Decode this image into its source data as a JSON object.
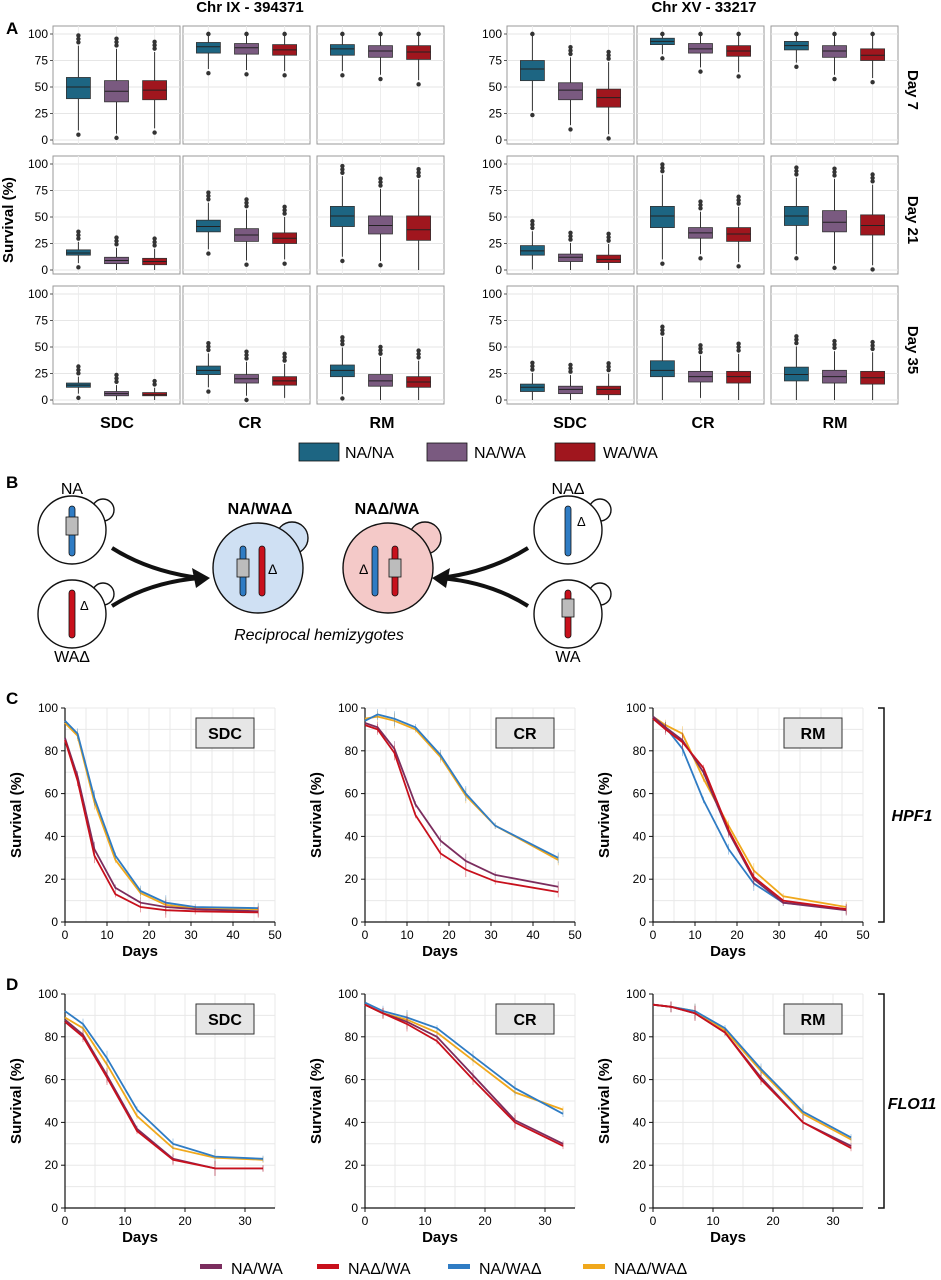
{
  "panelA": {
    "label": "A",
    "ylabel": "Survival (%)",
    "yticks": [
      0,
      25,
      50,
      75,
      100
    ],
    "groups": [
      {
        "title": "Chr IX - 394371",
        "media": [
          "SDC",
          "CR",
          "RM"
        ]
      },
      {
        "title": "Chr XV - 33217",
        "media": [
          "SDC",
          "CR",
          "RM"
        ]
      }
    ],
    "days": [
      "Day 7",
      "Day 21",
      "Day 35"
    ],
    "genotypes": [
      "NA/NA",
      "NA/WA",
      "WA/WA"
    ],
    "colors": {
      "NA/NA": "#1d6582",
      "NA/WA": "#7a5a80",
      "WA/WA": "#a0161e"
    }
  },
  "panelB": {
    "label": "B",
    "left_top": "NA",
    "left_bottom": "WAΔ",
    "right_top": "NAΔ",
    "right_bottom": "WA",
    "hybrid_left": "NA/WAΔ",
    "hybrid_right": "NAΔ/WA",
    "delta": "Δ",
    "caption": "Reciprocal hemizygotes"
  },
  "panelC": {
    "label": "C",
    "gene": "HPF1",
    "ylabel": "Survival (%)",
    "xlabel": "Days",
    "xticks": [
      0,
      10,
      20,
      30,
      40,
      50
    ],
    "yticks": [
      0,
      20,
      40,
      60,
      80,
      100
    ]
  },
  "panelD": {
    "label": "D",
    "gene": "FLO11",
    "ylabel": "Survival (%)",
    "xlabel": "Days",
    "xticks": [
      0,
      10,
      20,
      30
    ],
    "yticks": [
      0,
      20,
      40,
      60,
      80,
      100
    ]
  },
  "legend2": {
    "entries": [
      "NA/WA",
      "NAΔ/WA",
      "NA/WAΔ",
      "NAΔ/WAΔ"
    ],
    "colors": [
      "#7b2d5e",
      "#c8101c",
      "#2f7cc4",
      "#f0a81c"
    ]
  },
  "chart_data": [
    {
      "type": "box",
      "panel": "A",
      "title": "Chr IX - 394371",
      "ylabel": "Survival (%)",
      "ylim": [
        0,
        100
      ],
      "facets": [
        {
          "day": "Day 7",
          "medium": "SDC",
          "medians": [
            50,
            46,
            47
          ],
          "q1": [
            39,
            36,
            38
          ],
          "q3": [
            59,
            56,
            56
          ]
        },
        {
          "day": "Day 7",
          "medium": "CR",
          "medians": [
            88,
            87,
            85
          ],
          "q1": [
            82,
            81,
            80
          ],
          "q3": [
            92,
            91,
            90
          ]
        },
        {
          "day": "Day 7",
          "medium": "RM",
          "medians": [
            86,
            84,
            83
          ],
          "q1": [
            80,
            78,
            76
          ],
          "q3": [
            90,
            89,
            89
          ]
        },
        {
          "day": "Day 21",
          "medium": "SDC",
          "medians": [
            16,
            9,
            8
          ],
          "q1": [
            14,
            6,
            5
          ],
          "q3": [
            19,
            12,
            11
          ]
        },
        {
          "day": "Day 21",
          "medium": "CR",
          "medians": [
            41,
            33,
            30
          ],
          "q1": [
            36,
            27,
            25
          ],
          "q3": [
            47,
            39,
            35
          ]
        },
        {
          "day": "Day 21",
          "medium": "RM",
          "medians": [
            51,
            42,
            38
          ],
          "q1": [
            41,
            34,
            28
          ],
          "q3": [
            60,
            51,
            51
          ]
        },
        {
          "day": "Day 35",
          "medium": "SDC",
          "medians": [
            14,
            6,
            5
          ],
          "q1": [
            12,
            4,
            4
          ],
          "q3": [
            16,
            8,
            7
          ]
        },
        {
          "day": "Day 35",
          "medium": "CR",
          "medians": [
            28,
            20,
            18
          ],
          "q1": [
            24,
            16,
            14
          ],
          "q3": [
            32,
            24,
            22
          ]
        },
        {
          "day": "Day 35",
          "medium": "RM",
          "medians": [
            28,
            18,
            17
          ],
          "q1": [
            22,
            13,
            12
          ],
          "q3": [
            33,
            24,
            22
          ]
        }
      ]
    },
    {
      "type": "box",
      "panel": "A",
      "title": "Chr XV - 33217",
      "ylabel": "Survival (%)",
      "ylim": [
        0,
        100
      ],
      "facets": [
        {
          "day": "Day 7",
          "medium": "SDC",
          "medians": [
            67,
            47,
            40
          ],
          "q1": [
            56,
            38,
            31
          ],
          "q3": [
            75,
            54,
            48
          ]
        },
        {
          "day": "Day 7",
          "medium": "CR",
          "medians": [
            93,
            86,
            84
          ],
          "q1": [
            90,
            82,
            79
          ],
          "q3": [
            96,
            91,
            89
          ]
        },
        {
          "day": "Day 7",
          "medium": "RM",
          "medians": [
            89,
            84,
            80
          ],
          "q1": [
            85,
            78,
            75
          ],
          "q3": [
            93,
            89,
            86
          ]
        },
        {
          "day": "Day 21",
          "medium": "SDC",
          "medians": [
            18,
            12,
            10
          ],
          "q1": [
            14,
            8,
            7
          ],
          "q3": [
            23,
            15,
            14
          ]
        },
        {
          "day": "Day 21",
          "medium": "CR",
          "medians": [
            51,
            35,
            34
          ],
          "q1": [
            40,
            30,
            27
          ],
          "q3": [
            60,
            40,
            40
          ]
        },
        {
          "day": "Day 21",
          "medium": "RM",
          "medians": [
            51,
            45,
            42
          ],
          "q1": [
            42,
            36,
            33
          ],
          "q3": [
            60,
            56,
            52
          ]
        },
        {
          "day": "Day 35",
          "medium": "SDC",
          "medians": [
            12,
            10,
            10
          ],
          "q1": [
            8,
            6,
            5
          ],
          "q3": [
            15,
            13,
            13
          ]
        },
        {
          "day": "Day 35",
          "medium": "CR",
          "medians": [
            28,
            22,
            22
          ],
          "q1": [
            22,
            17,
            16
          ],
          "q3": [
            37,
            27,
            27
          ]
        },
        {
          "day": "Day 35",
          "medium": "RM",
          "medians": [
            24,
            22,
            21
          ],
          "q1": [
            18,
            16,
            15
          ],
          "q3": [
            31,
            28,
            27
          ]
        }
      ]
    },
    {
      "type": "line",
      "panel": "C",
      "gene": "HPF1",
      "xlabel": "Days",
      "ylabel": "Survival (%)",
      "xlim": [
        0,
        50
      ],
      "ylim": [
        0,
        100
      ],
      "subplots": [
        {
          "title": "SDC",
          "x": [
            0,
            3,
            7,
            12,
            18,
            24,
            31,
            46
          ],
          "series": [
            {
              "name": "NA/WA",
              "values": [
                86,
                68,
                34,
                16,
                9,
                7,
                6,
                5
              ]
            },
            {
              "name": "NAΔ/WA",
              "values": [
                85,
                66,
                31,
                13,
                7,
                5.5,
                5,
                4.5
              ]
            },
            {
              "name": "NA/WAΔ",
              "values": [
                94,
                88,
                58,
                31,
                14.5,
                9,
                7,
                6.5
              ]
            },
            {
              "name": "NAΔ/WAΔ",
              "values": [
                93,
                87,
                56,
                29,
                13.5,
                8,
                6.5,
                6
              ]
            }
          ]
        },
        {
          "title": "CR",
          "x": [
            0,
            3,
            7,
            12,
            18,
            24,
            31,
            46
          ],
          "series": [
            {
              "name": "NA/WA",
              "values": [
                93,
                91,
                81,
                55,
                38,
                28.5,
                22,
                16.5
              ]
            },
            {
              "name": "NAΔ/WA",
              "values": [
                92,
                90,
                79,
                50,
                32,
                24.5,
                19,
                14
              ]
            },
            {
              "name": "NA/WAΔ",
              "values": [
                94,
                97,
                95,
                91,
                78,
                60,
                45,
                30
              ]
            },
            {
              "name": "NAΔ/WAΔ",
              "values": [
                95,
                96,
                94,
                90,
                77,
                59,
                45,
                29
              ]
            }
          ]
        },
        {
          "title": "RM",
          "x": [
            0,
            3,
            7,
            12,
            18,
            24,
            31,
            46
          ],
          "series": [
            {
              "name": "NA/WA",
              "values": [
                96,
                91,
                85,
                70,
                42,
                20,
                9,
                5.5
              ]
            },
            {
              "name": "NAΔ/WA",
              "values": [
                95,
                90,
                84,
                72,
                43,
                21,
                10,
                6
              ]
            },
            {
              "name": "NA/WAΔ",
              "values": [
                96,
                91,
                81,
                57,
                34,
                18,
                9,
                6
              ]
            },
            {
              "name": "NAΔ/WAΔ",
              "values": [
                96,
                92,
                88,
                67,
                45,
                24,
                12,
                7
              ]
            }
          ]
        }
      ]
    },
    {
      "type": "line",
      "panel": "D",
      "gene": "FLO11",
      "xlabel": "Days",
      "ylabel": "Survival (%)",
      "xlim": [
        0,
        35
      ],
      "ylim": [
        0,
        100
      ],
      "subplots": [
        {
          "title": "SDC",
          "x": [
            0,
            3,
            7,
            12,
            18,
            25,
            33
          ],
          "series": [
            {
              "name": "NA/WA",
              "values": [
                88,
                81,
                62,
                37,
                23,
                18.5,
                18.5
              ]
            },
            {
              "name": "NAΔ/WA",
              "values": [
                87,
                80,
                61,
                36,
                22.5,
                18.5,
                18.5
              ]
            },
            {
              "name": "NA/WAΔ",
              "values": [
                92,
                86,
                70,
                46,
                30,
                24,
                23
              ]
            },
            {
              "name": "NAΔ/WAΔ",
              "values": [
                89,
                84,
                67,
                43,
                28,
                23.5,
                22.5
              ]
            }
          ]
        },
        {
          "title": "CR",
          "x": [
            0,
            3,
            7,
            12,
            18,
            25,
            33
          ],
          "series": [
            {
              "name": "NA/WA",
              "values": [
                95,
                91,
                87,
                80,
                62,
                41,
                30
              ]
            },
            {
              "name": "NAΔ/WA",
              "values": [
                95,
                91,
                86,
                78,
                60,
                40,
                29
              ]
            },
            {
              "name": "NA/WAΔ",
              "values": [
                96,
                92,
                89,
                84,
                71,
                56,
                44
              ]
            },
            {
              "name": "NAΔ/WAΔ",
              "values": [
                95,
                91,
                88,
                82,
                69,
                54,
                46
              ]
            }
          ]
        },
        {
          "title": "RM",
          "x": [
            0,
            3,
            7,
            12,
            18,
            25,
            33
          ],
          "series": [
            {
              "name": "NA/WA",
              "values": [
                95,
                94,
                91,
                82,
                61,
                40,
                29
              ]
            },
            {
              "name": "NAΔ/WA",
              "values": [
                95,
                94,
                91,
                82,
                60,
                40,
                28
              ]
            },
            {
              "name": "NA/WAΔ",
              "values": [
                95,
                94,
                92,
                84,
                65,
                45,
                33
              ]
            },
            {
              "name": "NAΔ/WAΔ",
              "values": [
                95,
                94,
                92,
                83,
                64,
                44,
                32
              ]
            }
          ]
        }
      ]
    }
  ]
}
